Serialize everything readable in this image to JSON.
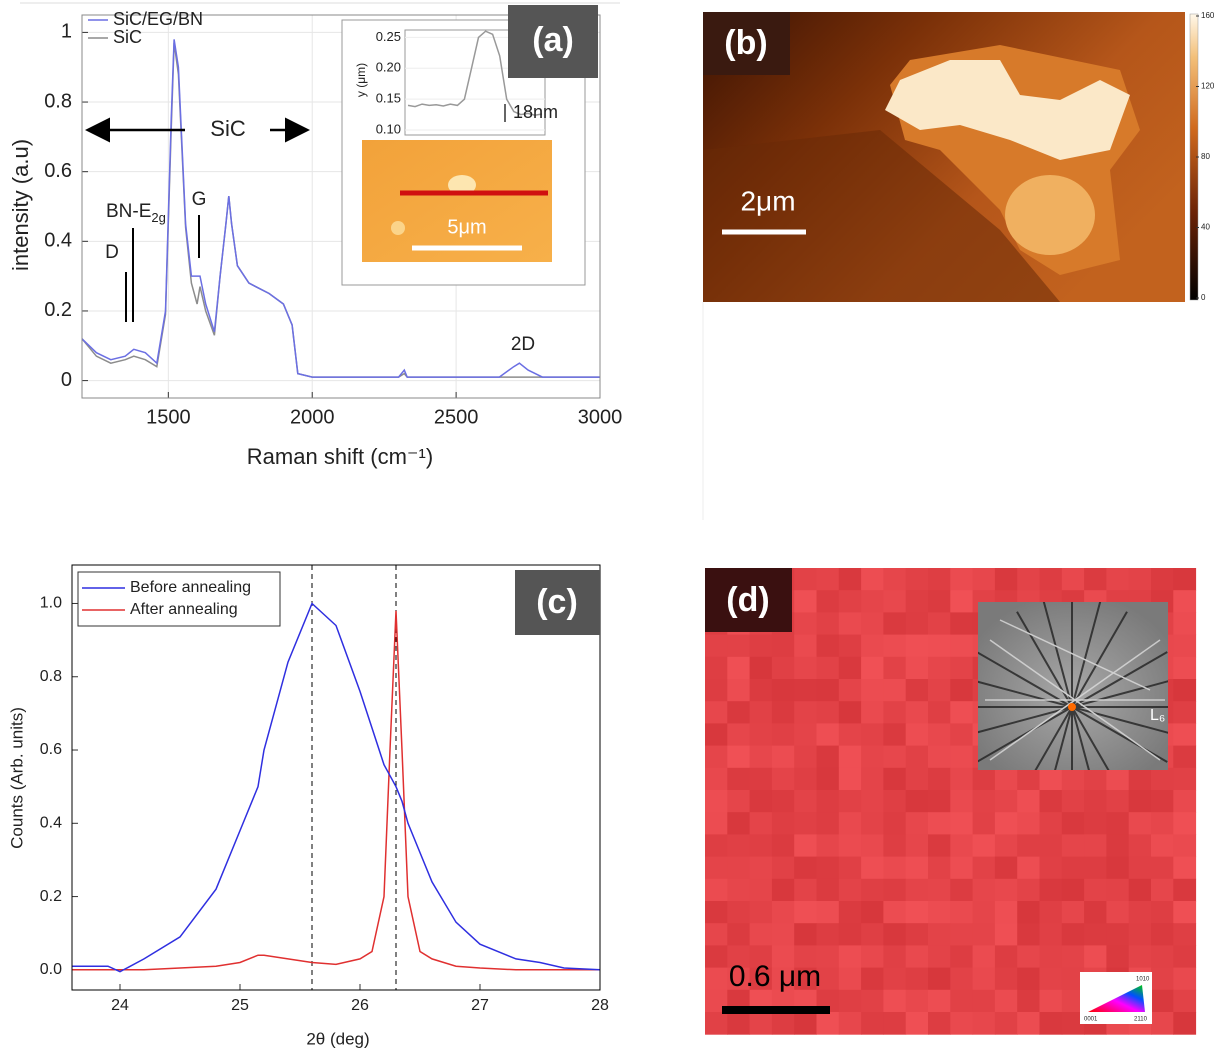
{
  "chart_data": [
    {
      "type": "line",
      "panel_label": "(a)",
      "x_label": "Raman shift (cm⁻¹)",
      "y_label": "intensity (a.u)",
      "xlim": [
        1200,
        3000
      ],
      "xticks": [
        1500,
        2000,
        2500,
        3000
      ],
      "ylim": [
        -0.05,
        1.05
      ],
      "yticks": [
        0,
        0.2,
        0.4,
        0.6,
        0.8,
        1
      ],
      "grid": true,
      "x": [
        1200,
        1250,
        1300,
        1350,
        1380,
        1420,
        1460,
        1490,
        1510,
        1520,
        1535,
        1560,
        1580,
        1600,
        1610,
        1630,
        1660,
        1680,
        1700,
        1710,
        1720,
        1740,
        1780,
        1850,
        1900,
        1930,
        1950,
        2000,
        2300,
        2320,
        2330,
        2340,
        2400,
        2650,
        2700,
        2720,
        2750,
        2800,
        3000
      ],
      "series": [
        {
          "name": "SiC/EG/BN",
          "color": "#6b6fe3",
          "values": [
            0.12,
            0.08,
            0.06,
            0.07,
            0.09,
            0.08,
            0.05,
            0.2,
            0.75,
            0.98,
            0.9,
            0.45,
            0.3,
            0.3,
            0.3,
            0.22,
            0.14,
            0.3,
            0.45,
            0.53,
            0.45,
            0.33,
            0.28,
            0.25,
            0.22,
            0.16,
            0.02,
            0.01,
            0.01,
            0.03,
            0.01,
            0.01,
            0.01,
            0.01,
            0.04,
            0.05,
            0.03,
            0.01,
            0.01
          ]
        },
        {
          "name": "SiC",
          "color": "#8c8c8c",
          "values": [
            0.12,
            0.07,
            0.05,
            0.06,
            0.07,
            0.06,
            0.04,
            0.19,
            0.72,
            0.97,
            0.88,
            0.44,
            0.28,
            0.22,
            0.27,
            0.2,
            0.13,
            0.3,
            0.45,
            0.53,
            0.45,
            0.33,
            0.28,
            0.25,
            0.22,
            0.16,
            0.02,
            0.01,
            0.01,
            0.02,
            0.01,
            0.01,
            0.01,
            0.01,
            0.01,
            0.01,
            0.01,
            0.01,
            0.01
          ]
        }
      ],
      "annotations": {
        "range": "SiC",
        "d": "D",
        "bn": {
          "text": "BN-E",
          "sub": "2g"
        },
        "g": "G",
        "two_d": "2D"
      },
      "inset": {
        "y_label": "y (μm)",
        "ylim": [
          0.092,
          0.262
        ],
        "yticks": [
          {
            "value": 0.1,
            "label": "0.10"
          },
          {
            "value": 0.15,
            "label": "0.15"
          },
          {
            "value": 0.2,
            "label": "0.20"
          },
          {
            "value": 0.25,
            "label": "0.25"
          }
        ],
        "values": [
          0.14,
          0.138,
          0.142,
          0.14,
          0.141,
          0.139,
          0.142,
          0.14,
          0.15,
          0.2,
          0.25,
          0.26,
          0.255,
          0.22,
          0.15,
          0.13,
          0.125,
          0.127,
          0.124,
          0.126
        ],
        "color": "#999999",
        "step": "18nm",
        "scale_bar": "5μm"
      }
    },
    {
      "type": "image",
      "panel_label": "(b)",
      "scale_bar": "2μm",
      "clim": [
        0,
        160
      ],
      "colorbar_ticks": [
        0,
        40,
        80,
        120,
        160
      ]
    },
    {
      "type": "line",
      "panel_label": "(c)",
      "x_label": "2θ (deg)",
      "y_label": "Counts (Arb. units)",
      "xlim": [
        23.6,
        28
      ],
      "xticks": [
        24,
        25,
        26,
        27,
        28
      ],
      "ylim": [
        -0.055,
        1.105
      ],
      "yticks": [
        {
          "value": 0,
          "label": "0.0"
        },
        0.2,
        0.4,
        0.6,
        0.8,
        {
          "value": 1,
          "label": "1.0"
        }
      ],
      "grid": false,
      "vlines": [
        25.6,
        26.3
      ],
      "x": [
        23.6,
        23.9,
        24.0,
        24.2,
        24.5,
        24.8,
        25.0,
        25.15,
        25.2,
        25.4,
        25.6,
        25.8,
        26.0,
        26.1,
        26.2,
        26.25,
        26.3,
        26.35,
        26.4,
        26.5,
        26.6,
        26.8,
        27.0,
        27.3,
        27.5,
        27.7,
        28.0
      ],
      "series": [
        {
          "name": "Before annealing",
          "color": "#2f2fe0",
          "values": [
            0.01,
            0.01,
            -0.005,
            0.03,
            0.09,
            0.22,
            0.38,
            0.5,
            0.6,
            0.84,
            1.0,
            0.94,
            0.76,
            0.66,
            0.56,
            0.53,
            0.5,
            0.46,
            0.4,
            0.32,
            0.24,
            0.13,
            0.07,
            0.03,
            0.02,
            0.005,
            0
          ]
        },
        {
          "name": "After annealing",
          "color": "#e03030",
          "values": [
            0,
            0,
            0,
            0,
            0.005,
            0.01,
            0.02,
            0.04,
            0.04,
            0.03,
            0.02,
            0.015,
            0.03,
            0.05,
            0.2,
            0.6,
            0.98,
            0.6,
            0.2,
            0.05,
            0.03,
            0.01,
            0.005,
            0,
            0,
            0,
            0
          ]
        }
      ]
    },
    {
      "type": "image",
      "panel_label": "(d)",
      "scale_bar": "0.6 μm",
      "inset_label": "L₆",
      "key_labels": [
        "1010",
        "0001",
        "2110"
      ]
    }
  ]
}
